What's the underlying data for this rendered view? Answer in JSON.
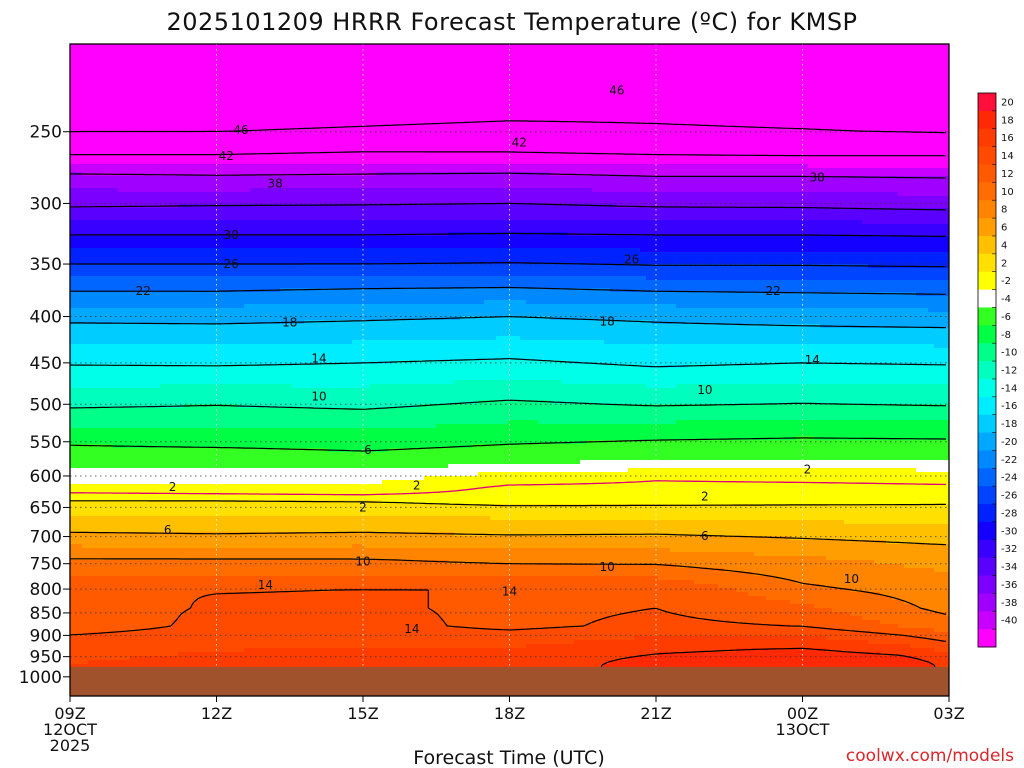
{
  "chart_data": {
    "type": "heatmap",
    "title": "2025101209 HRRR Forecast Temperature (ºC) for KMSP",
    "xlabel": "Forecast Time (UTC)",
    "ylabel": "",
    "credit": "coolwx.com/models",
    "y_scale": "log-pressure",
    "ylim": [
      1050,
      200
    ],
    "x_range_hours": [
      0,
      18
    ],
    "y_ticks": [
      250,
      300,
      350,
      400,
      450,
      500,
      550,
      600,
      650,
      700,
      750,
      800,
      850,
      900,
      950,
      1000
    ],
    "y_tick_labels": [
      "250",
      "300",
      "350",
      "400",
      "450",
      "500",
      "550",
      "600",
      "650",
      "700",
      "750",
      "800",
      "850",
      "900",
      "950",
      "1000"
    ],
    "x_ticks": [
      {
        "hour": 0,
        "lines": [
          "09Z",
          "12OCT",
          "2025"
        ]
      },
      {
        "hour": 3,
        "lines": [
          "12Z"
        ]
      },
      {
        "hour": 6,
        "lines": [
          "15Z"
        ]
      },
      {
        "hour": 9,
        "lines": [
          "18Z"
        ]
      },
      {
        "hour": 12,
        "lines": [
          "21Z"
        ]
      },
      {
        "hour": 15,
        "lines": [
          "00Z",
          "13OCT"
        ]
      },
      {
        "hour": 18,
        "lines": [
          "03Z"
        ]
      }
    ],
    "colorbar_levels": [
      20,
      18,
      16,
      14,
      12,
      10,
      8,
      6,
      4,
      2,
      -2,
      -4,
      -6,
      -8,
      -10,
      -12,
      -14,
      -16,
      -18,
      -20,
      -22,
      -24,
      -26,
      -28,
      -30,
      -32,
      -34,
      -36,
      -38,
      -40
    ],
    "colorbar_colors": [
      "#ff0f3a",
      "#ff2a05",
      "#ff3c00",
      "#ff4b00",
      "#ff5a00",
      "#ff6c00",
      "#ff8400",
      "#ff9e00",
      "#ffc000",
      "#ffe000",
      "#ffff00",
      "#ffffff",
      "#33ff22",
      "#00ff44",
      "#00ff88",
      "#00ffbf",
      "#00ffe8",
      "#00ecff",
      "#00ccff",
      "#00a8ff",
      "#0088ff",
      "#0066ff",
      "#0044ff",
      "#0022ff",
      "#1400ff",
      "#3800ff",
      "#5a00ff",
      "#7c00ff",
      "#a000ff",
      "#c800ff",
      "#ff00ff"
    ],
    "ground_color": "#a0522d",
    "surface_pressure": 975,
    "surface_temp_by_hour": [
      {
        "hour": 0,
        "temp": 16
      },
      {
        "hour": 3,
        "temp": 16.4
      },
      {
        "hour": 6,
        "temp": 16.6
      },
      {
        "hour": 9,
        "temp": 17
      },
      {
        "hour": 10.5,
        "temp": 17.8
      },
      {
        "hour": 12,
        "temp": 18.6
      },
      {
        "hour": 14,
        "temp": 19.2
      },
      {
        "hour": 15.5,
        "temp": 19.4
      },
      {
        "hour": 17,
        "temp": 19.3
      },
      {
        "hour": 18,
        "temp": 17.5
      }
    ],
    "series": [
      {
        "name": "profile 09Z",
        "hour": 0,
        "points": [
          [
            975,
            16
          ],
          [
            930,
            14.3
          ],
          [
            880,
            13
          ],
          [
            840,
            12.6
          ],
          [
            800,
            14
          ],
          [
            760,
            11
          ],
          [
            740,
            10
          ],
          [
            700,
            6.5
          ],
          [
            660,
            3.8
          ],
          [
            640,
            2.2
          ],
          [
            620,
            -1
          ],
          [
            610,
            -2
          ],
          [
            580,
            -4.5
          ],
          [
            550,
            -6.3
          ],
          [
            500,
            -10.4
          ],
          [
            450,
            -14.2
          ],
          [
            400,
            -18.6
          ],
          [
            375,
            -22
          ],
          [
            350,
            -26
          ],
          [
            325,
            -30
          ],
          [
            300,
            -34.5
          ],
          [
            280,
            -37.5
          ],
          [
            265,
            -42
          ],
          [
            250,
            -46
          ],
          [
            230,
            -50
          ]
        ]
      },
      {
        "name": "profile 12Z",
        "hour": 3,
        "points": [
          [
            975,
            16.4
          ],
          [
            900,
            14.5
          ],
          [
            850,
            14.4
          ],
          [
            800,
            13.9
          ],
          [
            760,
            10.8
          ],
          [
            740,
            10
          ],
          [
            700,
            6.3
          ],
          [
            660,
            3.8
          ],
          [
            640,
            2.2
          ],
          [
            620,
            -1.4
          ],
          [
            610,
            -2.1
          ],
          [
            580,
            -4.4
          ],
          [
            550,
            -6.6
          ],
          [
            500,
            -10.1
          ],
          [
            450,
            -14.3
          ],
          [
            400,
            -18.7
          ],
          [
            375,
            -22
          ],
          [
            350,
            -26
          ],
          [
            325,
            -30
          ],
          [
            300,
            -34.3
          ],
          [
            280,
            -37.8
          ],
          [
            265,
            -42
          ],
          [
            250,
            -46
          ],
          [
            230,
            -49
          ]
        ]
      },
      {
        "name": "profile 15Z",
        "hour": 6,
        "points": [
          [
            975,
            16.6
          ],
          [
            900,
            14.8
          ],
          [
            850,
            14.5
          ],
          [
            800,
            14
          ],
          [
            760,
            10.7
          ],
          [
            740,
            10
          ],
          [
            700,
            6.5
          ],
          [
            660,
            3.8
          ],
          [
            640,
            2
          ],
          [
            620,
            -1.8
          ],
          [
            610,
            -2.2
          ],
          [
            580,
            -5
          ],
          [
            550,
            -6.8
          ],
          [
            500,
            -10.5
          ],
          [
            450,
            -14
          ],
          [
            400,
            -18.4
          ],
          [
            375,
            -21.6
          ],
          [
            350,
            -26
          ],
          [
            325,
            -30
          ],
          [
            300,
            -34.2
          ],
          [
            280,
            -37.6
          ],
          [
            265,
            -41.5
          ],
          [
            250,
            -45.5
          ],
          [
            230,
            -48.5
          ]
        ]
      },
      {
        "name": "profile 18Z",
        "hour": 9,
        "points": [
          [
            975,
            17
          ],
          [
            930,
            15
          ],
          [
            880,
            13.5
          ],
          [
            840,
            13.5
          ],
          [
            800,
            14
          ],
          [
            760,
            10.5
          ],
          [
            740,
            9.5
          ],
          [
            700,
            6.2
          ],
          [
            660,
            3.4
          ],
          [
            640,
            1.2
          ],
          [
            620,
            0.6
          ],
          [
            610,
            -0.4
          ],
          [
            600,
            -1.1
          ],
          [
            580,
            -4.5
          ],
          [
            550,
            -6.2
          ],
          [
            500,
            -9.6
          ],
          [
            450,
            -13.6
          ],
          [
            400,
            -18
          ],
          [
            375,
            -21.4
          ],
          [
            350,
            -25.8
          ],
          [
            325,
            -29.8
          ],
          [
            300,
            -34
          ],
          [
            280,
            -37.4
          ],
          [
            265,
            -41.6
          ],
          [
            250,
            -45
          ],
          [
            230,
            -48
          ]
        ]
      },
      {
        "name": "profile 21Z",
        "hour": 12,
        "points": [
          [
            975,
            18.6
          ],
          [
            930,
            16
          ],
          [
            880,
            14.5
          ],
          [
            840,
            14
          ],
          [
            800,
            13.8
          ],
          [
            760,
            10.6
          ],
          [
            740,
            9.2
          ],
          [
            700,
            6.3
          ],
          [
            660,
            3.4
          ],
          [
            640,
            1.3
          ],
          [
            620,
            0.5
          ],
          [
            600,
            -0.3
          ],
          [
            590,
            -2
          ],
          [
            570,
            -4.6
          ],
          [
            540,
            -6.5
          ],
          [
            500,
            -10.2
          ],
          [
            450,
            -14.4
          ],
          [
            400,
            -18.5
          ],
          [
            375,
            -22
          ],
          [
            350,
            -26.2
          ],
          [
            325,
            -30
          ],
          [
            300,
            -34.5
          ],
          [
            280,
            -38
          ],
          [
            265,
            -42
          ],
          [
            250,
            -45.5
          ],
          [
            230,
            -47.5
          ]
        ]
      },
      {
        "name": "profile 00Z",
        "hour": 15,
        "points": [
          [
            975,
            19.4
          ],
          [
            930,
            16.5
          ],
          [
            880,
            14
          ],
          [
            840,
            12.5
          ],
          [
            800,
            10.4
          ],
          [
            760,
            9
          ],
          [
            740,
            8.2
          ],
          [
            700,
            5.8
          ],
          [
            660,
            3.2
          ],
          [
            640,
            1.5
          ],
          [
            620,
            0.5
          ],
          [
            600,
            -0.5
          ],
          [
            590,
            -2
          ],
          [
            570,
            -4.4
          ],
          [
            540,
            -6.3
          ],
          [
            500,
            -9.9
          ],
          [
            450,
            -14
          ],
          [
            400,
            -19
          ],
          [
            375,
            -22.2
          ],
          [
            350,
            -26.2
          ],
          [
            325,
            -30
          ],
          [
            300,
            -34.6
          ],
          [
            280,
            -38
          ],
          [
            265,
            -42.2
          ],
          [
            250,
            -45.8
          ],
          [
            230,
            -48
          ]
        ]
      },
      {
        "name": "profile 03Z",
        "hour": 18,
        "points": [
          [
            975,
            17.5
          ],
          [
            950,
            14
          ],
          [
            930,
            12.3
          ],
          [
            880,
            11
          ],
          [
            840,
            9.4
          ],
          [
            800,
            9
          ],
          [
            760,
            7.8
          ],
          [
            740,
            7.3
          ],
          [
            700,
            5.2
          ],
          [
            660,
            2.6
          ],
          [
            640,
            1.8
          ],
          [
            620,
            0.3
          ],
          [
            600,
            -0.6
          ],
          [
            590,
            -2.2
          ],
          [
            570,
            -4.5
          ],
          [
            540,
            -6.4
          ],
          [
            500,
            -10.2
          ],
          [
            450,
            -14.2
          ],
          [
            400,
            -19.2
          ],
          [
            375,
            -22.4
          ],
          [
            350,
            -26.4
          ],
          [
            325,
            -30.2
          ],
          [
            300,
            -35
          ],
          [
            280,
            -38.2
          ],
          [
            265,
            -42.2
          ],
          [
            250,
            -46.2
          ],
          [
            230,
            -48.5
          ]
        ]
      }
    ],
    "contour_labels": [
      {
        "text": "46",
        "hour": 3.5,
        "p": 249
      },
      {
        "text": "46",
        "hour": 11.2,
        "p": 225
      },
      {
        "text": "42",
        "hour": 3.2,
        "p": 266
      },
      {
        "text": "42",
        "hour": 9.2,
        "p": 257
      },
      {
        "text": "38",
        "hour": 4.2,
        "p": 285
      },
      {
        "text": "38",
        "hour": 15.3,
        "p": 281
      },
      {
        "text": "30",
        "hour": 3.3,
        "p": 325
      },
      {
        "text": "26",
        "hour": 3.3,
        "p": 350
      },
      {
        "text": "26",
        "hour": 11.5,
        "p": 346
      },
      {
        "text": "22",
        "hour": 1.5,
        "p": 375
      },
      {
        "text": "22",
        "hour": 14.4,
        "p": 375
      },
      {
        "text": "18",
        "hour": 4.5,
        "p": 406
      },
      {
        "text": "18",
        "hour": 11,
        "p": 405
      },
      {
        "text": "14",
        "hour": 5.1,
        "p": 445
      },
      {
        "text": "14",
        "hour": 15.2,
        "p": 447
      },
      {
        "text": "10",
        "hour": 5.1,
        "p": 490
      },
      {
        "text": "10",
        "hour": 13,
        "p": 482
      },
      {
        "text": "6",
        "hour": 6.1,
        "p": 562
      },
      {
        "text": "2",
        "hour": 2.1,
        "p": 617
      },
      {
        "text": "2",
        "hour": 7.1,
        "p": 615
      },
      {
        "text": "2",
        "hour": 15.1,
        "p": 590
      },
      {
        "text": "2",
        "hour": 6,
        "p": 650
      },
      {
        "text": "2",
        "hour": 13,
        "p": 632
      },
      {
        "text": "6",
        "hour": 2,
        "p": 688
      },
      {
        "text": "6",
        "hour": 13,
        "p": 699
      },
      {
        "text": "10",
        "hour": 6,
        "p": 746
      },
      {
        "text": "10",
        "hour": 11,
        "p": 756
      },
      {
        "text": "10",
        "hour": 16,
        "p": 780
      },
      {
        "text": "14",
        "hour": 4,
        "p": 792
      },
      {
        "text": "14",
        "hour": 9,
        "p": 805
      },
      {
        "text": "14",
        "hour": 7,
        "p": 885
      }
    ]
  }
}
